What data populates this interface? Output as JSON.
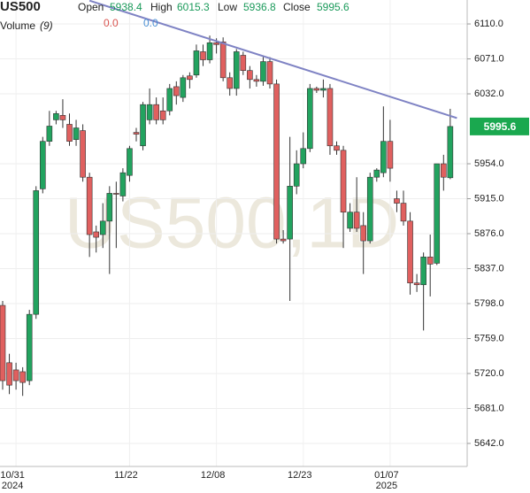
{
  "chart_data": {
    "type": "candlestick",
    "title": "US500",
    "watermark": "US500,1D",
    "header_labels": {
      "open": "Open",
      "high": "High",
      "low": "Low",
      "close": "Close"
    },
    "volume_label": "Volume",
    "volume_period": "(9)",
    "volume_values": [
      {
        "value": 0,
        "label": "0.0",
        "color": "#d9534f"
      },
      {
        "value": 0,
        "label": "0.0",
        "color": "#4a8fd4"
      }
    ],
    "categories": [
      null,
      null,
      "10/31",
      null,
      null,
      null,
      null,
      null,
      null,
      null,
      null,
      null,
      null,
      null,
      null,
      null,
      null,
      null,
      null,
      "11/22",
      null,
      null,
      null,
      null,
      null,
      null,
      null,
      null,
      null,
      null,
      null,
      null,
      "12/08",
      null,
      null,
      null,
      null,
      null,
      null,
      null,
      null,
      null,
      null,
      null,
      null,
      "12/23",
      null,
      null,
      null,
      null,
      null,
      null,
      null,
      null,
      null,
      null,
      null,
      null,
      "01/07",
      null,
      null,
      null,
      null,
      null,
      null,
      null,
      null,
      null
    ],
    "category_years": [
      null,
      null,
      "2024",
      null,
      null,
      null,
      null,
      null,
      null,
      null,
      null,
      null,
      null,
      null,
      null,
      null,
      null,
      null,
      null,
      null,
      null,
      null,
      null,
      null,
      null,
      null,
      null,
      null,
      null,
      null,
      null,
      null,
      null,
      null,
      null,
      null,
      null,
      null,
      null,
      null,
      null,
      null,
      null,
      null,
      null,
      null,
      null,
      null,
      null,
      null,
      null,
      null,
      null,
      null,
      null,
      null,
      null,
      null,
      "2025",
      null,
      null,
      null,
      null,
      null,
      null,
      null,
      null,
      null
    ],
    "open": [
      5796,
      5732,
      5724,
      5722,
      5712,
      5786,
      5926,
      5979,
      6003,
      6008,
      5998,
      5981,
      5991,
      5939,
      5878,
      5875,
      5890,
      5921,
      5918,
      5941,
      5989,
      5974,
      6003,
      6020,
      6013,
      6013,
      6040,
      6028,
      6052,
      6053,
      6079,
      6070,
      6089,
      6090,
      6050,
      6038,
      6075,
      6058,
      6048,
      6046,
      6068,
      6043,
      5870,
      5870,
      5929,
      5954,
      5971,
      6038,
      6036,
      6038,
      5974,
      5969,
      5882,
      5900,
      5885,
      5868,
      5939,
      5944,
      5979,
      5915,
      5910,
      5890,
      5821,
      5819,
      5850,
      5843,
      5954,
      5938.4
    ],
    "high": [
      5801,
      5742,
      5732,
      5727,
      5791,
      5929,
      5984,
      6013,
      6013,
      6026,
      6010,
      6003,
      5998,
      5944,
      5885,
      5910,
      5929,
      5934,
      5949,
      5974,
      5994,
      6023,
      6038,
      6028,
      6028,
      6043,
      6046,
      6053,
      6056,
      6087,
      6087,
      6097,
      6094,
      6095,
      6056,
      6082,
      6079,
      6063,
      6053,
      6073,
      6073,
      6048,
      5880,
      5984,
      5969,
      5989,
      6043,
      6040,
      6048,
      6043,
      5979,
      5974,
      5910,
      5939,
      5900,
      5944,
      5949,
      6018,
      6003,
      5924,
      5924,
      5900,
      5831,
      5855,
      5875,
      5954,
      5964,
      6015.3
    ],
    "low": [
      5702,
      5697,
      5702,
      5695,
      5707,
      5781,
      5921,
      5974,
      5998,
      5994,
      5974,
      5974,
      5934,
      5850,
      5855,
      5860,
      5831,
      5860,
      5912,
      5934,
      5979,
      5969,
      5998,
      5998,
      5998,
      6008,
      6020,
      6023,
      6038,
      6050,
      6063,
      6066,
      6077,
      6046,
      6030,
      6030,
      6053,
      6038,
      6040,
      6041,
      6038,
      5865,
      5865,
      5801,
      5920,
      5949,
      5967,
      6033,
      6028,
      5964,
      5964,
      5860,
      5878,
      5878,
      5831,
      5865,
      5934,
      5939,
      5934,
      5900,
      5885,
      5808,
      5811,
      5768,
      5806,
      5841,
      5924,
      5936.8
    ],
    "close": [
      5712,
      5707,
      5712,
      5710,
      5786,
      5924,
      5979,
      5996,
      6010,
      6003,
      5979,
      5994,
      5939,
      5875,
      5872,
      5890,
      5921,
      5920,
      5944,
      5971,
      5987,
      6020,
      6020,
      6003,
      6003,
      6038,
      6030,
      6050,
      6048,
      6080,
      6070,
      6089,
      6087,
      6050,
      6038,
      6079,
      6058,
      6048,
      6046,
      6068,
      6043,
      5870,
      5868,
      5929,
      5954,
      5971,
      6038,
      6036,
      6038,
      5974,
      5969,
      5900,
      5900,
      5882,
      5868,
      5939,
      5947,
      5979,
      5949,
      5910,
      5890,
      5821,
      5819,
      5850,
      5842,
      5954,
      5939,
      5995.6
    ],
    "up_color": "#22a35f",
    "down_color": "#e0605f",
    "ylim": [
      5616.3,
      6136.7
    ],
    "yticks": [
      {
        "value": 5642,
        "label": "5642.0"
      },
      {
        "value": 5681,
        "label": "5681.0"
      },
      {
        "value": 5720,
        "label": "5720.0"
      },
      {
        "value": 5759,
        "label": "5759.0"
      },
      {
        "value": 5798,
        "label": "5798.0"
      },
      {
        "value": 5837,
        "label": "5837.0"
      },
      {
        "value": 5876,
        "label": "5876.0"
      },
      {
        "value": 5915,
        "label": "5915.0"
      },
      {
        "value": 5954,
        "label": "5954.0"
      },
      {
        "value": 6032,
        "label": "6032.0"
      },
      {
        "value": 6071,
        "label": "6071.0"
      },
      {
        "value": 6110,
        "label": "6110.0"
      }
    ],
    "grid": true,
    "trendline": {
      "x": [
        13,
        68
      ],
      "values": [
        6136,
        6005
      ],
      "color": "#7f83c4"
    },
    "last_price_color": "#1aa84f"
  }
}
